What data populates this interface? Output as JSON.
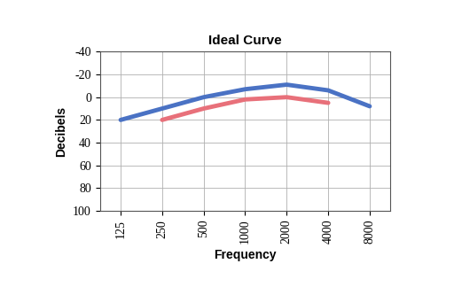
{
  "chart_data": {
    "type": "line",
    "title": "Ideal Curve",
    "x_label": "Frequency",
    "y_label": "Decibels",
    "categories": [
      "125",
      "250",
      "500",
      "1000",
      "2000",
      "4000",
      "8000"
    ],
    "series": [
      {
        "color": "#4a72c4",
        "values": [
          20,
          10,
          0,
          -7,
          -11,
          -6,
          8
        ]
      },
      {
        "color": "#e8707a",
        "values": [
          null,
          20,
          10,
          2,
          0,
          5,
          null
        ]
      }
    ],
    "ylim": [
      100,
      -40
    ],
    "yticks": [
      -40,
      -20,
      0,
      20,
      40,
      60,
      80,
      100
    ],
    "grid": true
  }
}
